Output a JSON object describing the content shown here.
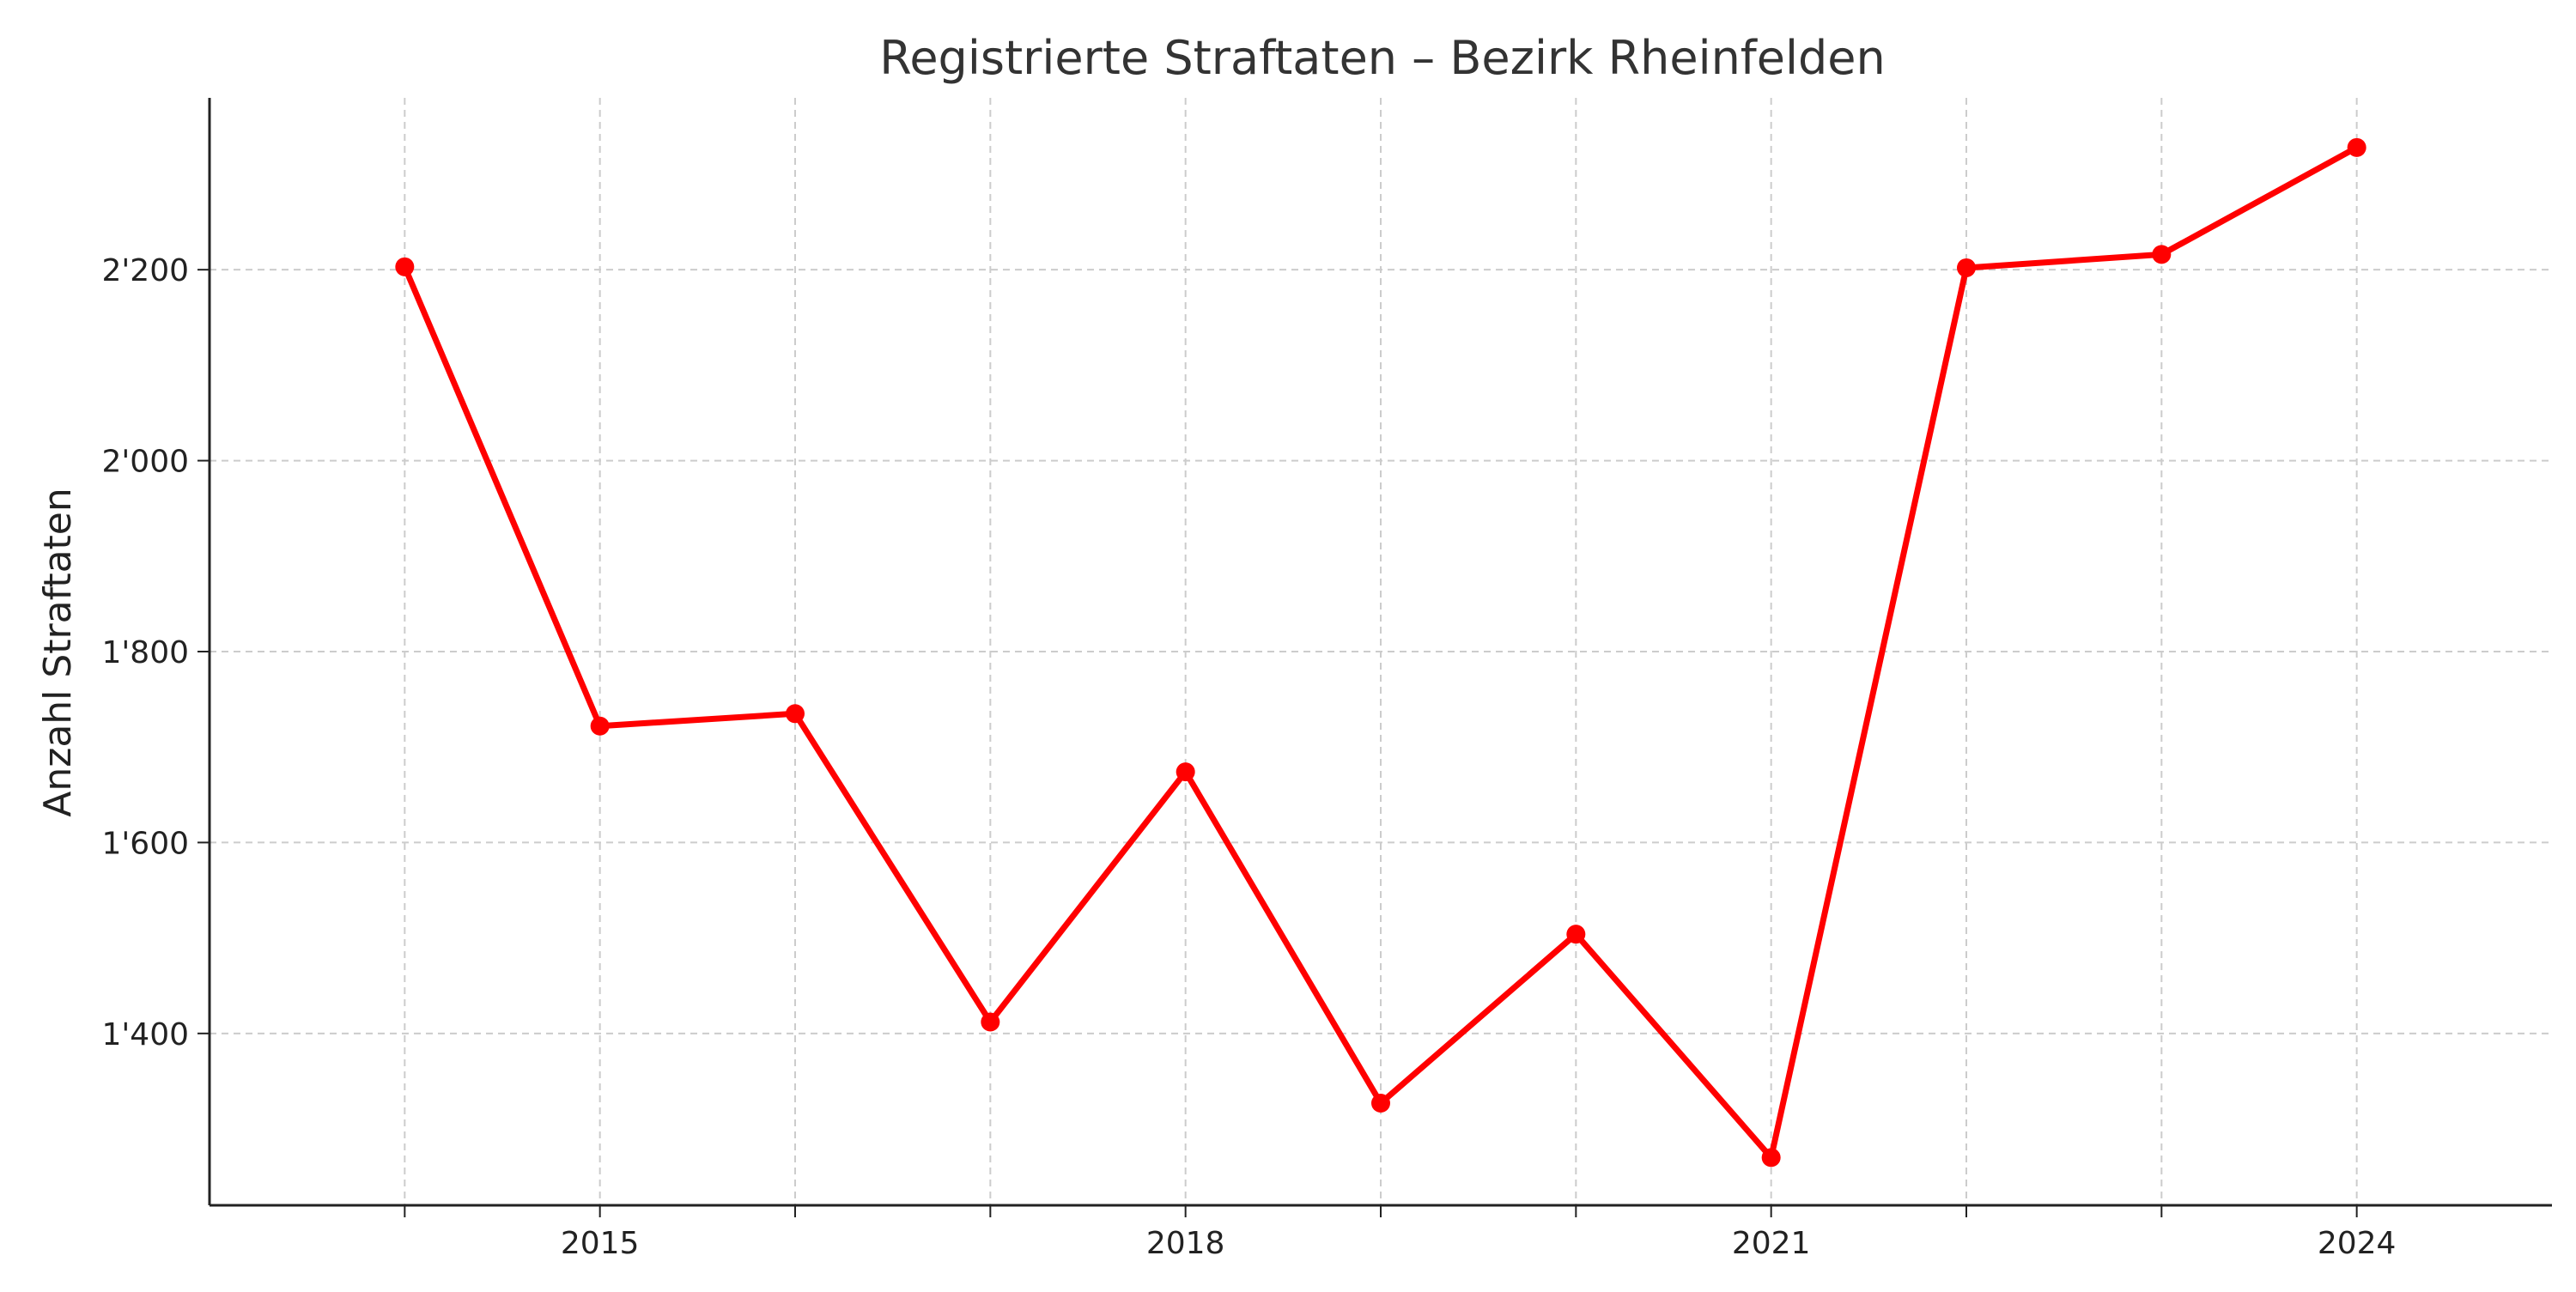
{
  "chart_data": {
    "type": "line",
    "title": "Registrierte Straftaten – Bezirk Rheinfelden",
    "xlabel": "",
    "ylabel": "Anzahl Straftaten",
    "x": [
      2014,
      2015,
      2016,
      2017,
      2018,
      2019,
      2020,
      2021,
      2022,
      2023,
      2024
    ],
    "series": [
      {
        "color": "#ff0000",
        "values": [
          2203,
          1722,
          1735,
          1412,
          1674,
          1327,
          1504,
          1270,
          2202,
          2216,
          2328
        ]
      }
    ],
    "xlim": [
      2013,
      2025
    ],
    "ylim": [
      1220,
      2380
    ],
    "x_ticks": [
      2014,
      2015,
      2016,
      2017,
      2018,
      2019,
      2020,
      2021,
      2022,
      2023,
      2024
    ],
    "x_tick_labels": [
      "",
      "2015",
      "",
      "",
      "2018",
      "",
      "",
      "2021",
      "",
      "",
      "2024"
    ],
    "y_ticks": [
      1400,
      1600,
      1800,
      2000,
      2200
    ],
    "y_tick_labels": [
      "1'400",
      "1'600",
      "1'800",
      "2'000",
      "2'200"
    ],
    "grid": true,
    "legend": "none"
  }
}
